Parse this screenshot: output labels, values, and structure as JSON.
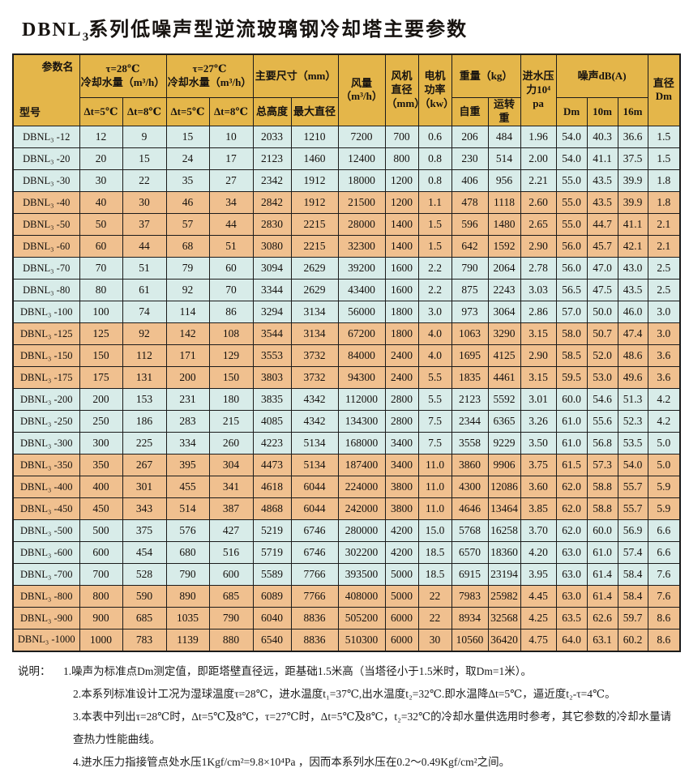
{
  "title": {
    "prefix": "DBNL",
    "sub": "3",
    "suffix": "系列低噪声型逆流玻璃钢冷却塔主要参数"
  },
  "colors": {
    "header_bg": "#E4B64A",
    "row_blue": "#D8ECE9",
    "row_orange": "#F0C08F",
    "border": "#1b1b1b"
  },
  "table": {
    "corner": {
      "top": "参数名",
      "bottom": "型号"
    },
    "header": {
      "tau28": "τ=28℃\n冷却水量（m³/h）",
      "tau27": "τ=27℃\n冷却水量（m³/h）",
      "dims": "主要尺寸（mm）",
      "airflow": "风量\n（m³/h）",
      "fan_dia": "风机\n直径\n（mm）",
      "motor_power": "电机\n功率\n（kw）",
      "weight": "重量（kg）",
      "pressure": "进水压\n力10⁴\npa",
      "noise": "噪声dB(A)",
      "diameter": "直径\nDm",
      "dt5": "Δt=5℃",
      "dt8": "Δt=8℃",
      "total_height": "总高度",
      "max_dia": "最大直径",
      "self_weight": "自重",
      "run_weight": "运转重",
      "noise_dm": "Dm",
      "noise_10m": "10m",
      "noise_16m": "16m"
    },
    "rows": [
      {
        "model": "DBNL₃ -12",
        "values": [
          "12",
          "9",
          "15",
          "10",
          "2033",
          "1210",
          "7200",
          "700",
          "0.6",
          "206",
          "484",
          "1.96",
          "54.0",
          "40.3",
          "36.6",
          "1.5"
        ]
      },
      {
        "model": "DBNL₃ -20",
        "values": [
          "20",
          "15",
          "24",
          "17",
          "2123",
          "1460",
          "12400",
          "800",
          "0.8",
          "230",
          "514",
          "2.00",
          "54.0",
          "41.1",
          "37.5",
          "1.5"
        ]
      },
      {
        "model": "DBNL₃ -30",
        "values": [
          "30",
          "22",
          "35",
          "27",
          "2342",
          "1912",
          "18000",
          "1200",
          "0.8",
          "406",
          "956",
          "2.21",
          "55.0",
          "43.5",
          "39.9",
          "1.8"
        ]
      },
      {
        "model": "DBNL₃ -40",
        "values": [
          "40",
          "30",
          "46",
          "34",
          "2842",
          "1912",
          "21500",
          "1200",
          "1.1",
          "478",
          "1118",
          "2.60",
          "55.0",
          "43.5",
          "39.9",
          "1.8"
        ]
      },
      {
        "model": "DBNL₃ -50",
        "values": [
          "50",
          "37",
          "57",
          "44",
          "2830",
          "2215",
          "28000",
          "1400",
          "1.5",
          "596",
          "1480",
          "2.65",
          "55.0",
          "44.7",
          "41.1",
          "2.1"
        ]
      },
      {
        "model": "DBNL₃ -60",
        "values": [
          "60",
          "44",
          "68",
          "51",
          "3080",
          "2215",
          "32300",
          "1400",
          "1.5",
          "642",
          "1592",
          "2.90",
          "56.0",
          "45.7",
          "42.1",
          "2.1"
        ]
      },
      {
        "model": "DBNL₃ -70",
        "values": [
          "70",
          "51",
          "79",
          "60",
          "3094",
          "2629",
          "39200",
          "1600",
          "2.2",
          "790",
          "2064",
          "2.78",
          "56.0",
          "47.0",
          "43.0",
          "2.5"
        ]
      },
      {
        "model": "DBNL₃ -80",
        "values": [
          "80",
          "61",
          "92",
          "70",
          "3344",
          "2629",
          "43400",
          "1600",
          "2.2",
          "875",
          "2243",
          "3.03",
          "56.5",
          "47.5",
          "43.5",
          "2.5"
        ]
      },
      {
        "model": "DBNL₃ -100",
        "values": [
          "100",
          "74",
          "114",
          "86",
          "3294",
          "3134",
          "56000",
          "1800",
          "3.0",
          "973",
          "3064",
          "2.86",
          "57.0",
          "50.0",
          "46.0",
          "3.0"
        ]
      },
      {
        "model": "DBNL₃ -125",
        "values": [
          "125",
          "92",
          "142",
          "108",
          "3544",
          "3134",
          "67200",
          "1800",
          "4.0",
          "1063",
          "3290",
          "3.15",
          "58.0",
          "50.7",
          "47.4",
          "3.0"
        ]
      },
      {
        "model": "DBNL₃ -150",
        "values": [
          "150",
          "112",
          "171",
          "129",
          "3553",
          "3732",
          "84000",
          "2400",
          "4.0",
          "1695",
          "4125",
          "2.90",
          "58.5",
          "52.0",
          "48.6",
          "3.6"
        ]
      },
      {
        "model": "DBNL₃ -175",
        "values": [
          "175",
          "131",
          "200",
          "150",
          "3803",
          "3732",
          "94300",
          "2400",
          "5.5",
          "1835",
          "4461",
          "3.15",
          "59.5",
          "53.0",
          "49.6",
          "3.6"
        ]
      },
      {
        "model": "DBNL₃ -200",
        "values": [
          "200",
          "153",
          "231",
          "180",
          "3835",
          "4342",
          "112000",
          "2800",
          "5.5",
          "2123",
          "5592",
          "3.01",
          "60.0",
          "54.6",
          "51.3",
          "4.2"
        ]
      },
      {
        "model": "DBNL₃ -250",
        "values": [
          "250",
          "186",
          "283",
          "215",
          "4085",
          "4342",
          "134300",
          "2800",
          "7.5",
          "2344",
          "6365",
          "3.26",
          "61.0",
          "55.6",
          "52.3",
          "4.2"
        ]
      },
      {
        "model": "DBNL₃ -300",
        "values": [
          "300",
          "225",
          "334",
          "260",
          "4223",
          "5134",
          "168000",
          "3400",
          "7.5",
          "3558",
          "9229",
          "3.50",
          "61.0",
          "56.8",
          "53.5",
          "5.0"
        ]
      },
      {
        "model": "DBNL₃ -350",
        "values": [
          "350",
          "267",
          "395",
          "304",
          "4473",
          "5134",
          "187400",
          "3400",
          "11.0",
          "3860",
          "9906",
          "3.75",
          "61.5",
          "57.3",
          "54.0",
          "5.0"
        ]
      },
      {
        "model": "DBNL₃ -400",
        "values": [
          "400",
          "301",
          "455",
          "341",
          "4618",
          "6044",
          "224000",
          "3800",
          "11.0",
          "4300",
          "12086",
          "3.60",
          "62.0",
          "58.8",
          "55.7",
          "5.9"
        ]
      },
      {
        "model": "DBNL₃ -450",
        "values": [
          "450",
          "343",
          "514",
          "387",
          "4868",
          "6044",
          "242000",
          "3800",
          "11.0",
          "4646",
          "13464",
          "3.85",
          "62.0",
          "58.8",
          "55.7",
          "5.9"
        ]
      },
      {
        "model": "DBNL₃ -500",
        "values": [
          "500",
          "375",
          "576",
          "427",
          "5219",
          "6746",
          "280000",
          "4200",
          "15.0",
          "5768",
          "16258",
          "3.70",
          "62.0",
          "60.0",
          "56.9",
          "6.6"
        ]
      },
      {
        "model": "DBNL₃ -600",
        "values": [
          "600",
          "454",
          "680",
          "516",
          "5719",
          "6746",
          "302200",
          "4200",
          "18.5",
          "6570",
          "18360",
          "4.20",
          "63.0",
          "61.0",
          "57.4",
          "6.6"
        ]
      },
      {
        "model": "DBNL₃ -700",
        "values": [
          "700",
          "528",
          "790",
          "600",
          "5589",
          "7766",
          "393500",
          "5000",
          "18.5",
          "6915",
          "23194",
          "3.95",
          "63.0",
          "61.4",
          "58.4",
          "7.6"
        ]
      },
      {
        "model": "DBNL₃ -800",
        "values": [
          "800",
          "590",
          "890",
          "685",
          "6089",
          "7766",
          "408000",
          "5000",
          "22",
          "7983",
          "25982",
          "4.45",
          "63.0",
          "61.4",
          "58.4",
          "7.6"
        ]
      },
      {
        "model": "DBNL₃ -900",
        "values": [
          "900",
          "685",
          "1035",
          "790",
          "6040",
          "8836",
          "505200",
          "6000",
          "22",
          "8934",
          "32568",
          "4.25",
          "63.5",
          "62.6",
          "59.7",
          "8.6"
        ]
      },
      {
        "model": "DBNL₃ -1000",
        "values": [
          "1000",
          "783",
          "1139",
          "880",
          "6540",
          "8836",
          "510300",
          "6000",
          "30",
          "10560",
          "36420",
          "4.75",
          "64.0",
          "63.1",
          "60.2",
          "8.6"
        ]
      }
    ]
  },
  "notes": {
    "label": "说明：",
    "items": [
      "1.噪声为标准点Dm测定值，即距塔壁直径远，距基础1.5米高（当塔径小于1.5米时，取Dm=1米）。",
      "2.本系列标准设计工况为湿球温度τ=28℃，进水温度t₁=37℃,出水温度t₂=32℃.即水温降Δt=5℃，逼近度t₂-τ=4℃。",
      "3.本表中列出τ=28℃时，Δt=5℃及8℃，τ=27℃时，Δt=5℃及8℃，t₂=32℃的冷却水量供选用时参考，其它参数的冷却水量请查热力性能曲线。",
      "4.进水压力指接管点处水压1Kgf/cm²=9.8×10⁴Pa ，因而本系列水压在0.2～0.49Kgf/cm²之间。"
    ]
  }
}
